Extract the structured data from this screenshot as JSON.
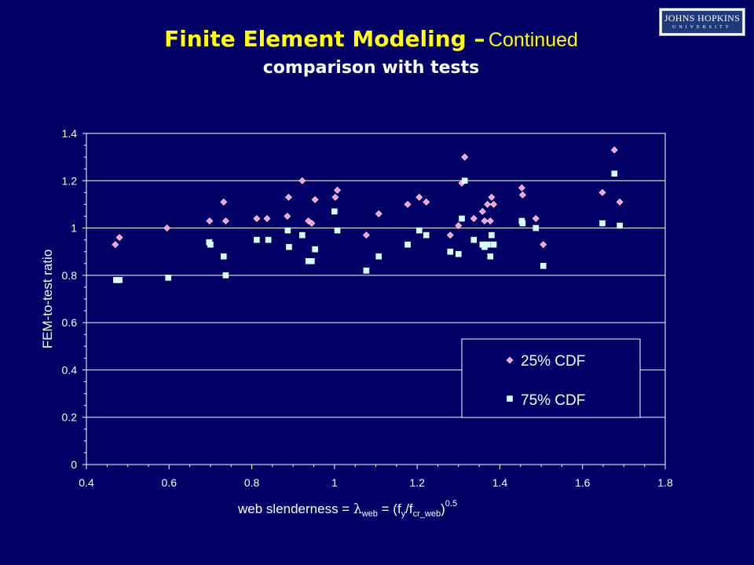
{
  "slide": {
    "title_main": "Finite Element Modeling –",
    "title_sub": "Continued",
    "subtitle": "comparison with tests",
    "logo_line1": "JOHNS HOPKINS",
    "logo_line2": "UNIVERSITY"
  },
  "colors": {
    "background": "#000066",
    "title": "#ffff00",
    "series_25": "#ff99cc",
    "series_75": "#ccffff"
  },
  "chart_data": {
    "type": "scatter",
    "ylabel": "FEM-to-test ratio",
    "xlabel": {
      "prefix": "web slenderness = ",
      "lambda": "λ",
      "lambda_sub": "web",
      "middle": " = (f",
      "fy_sub": "y",
      "slash": "/f",
      "fcr_sub": "cr_web",
      "close": ")",
      "exponent": "0.5"
    },
    "xlim": [
      0.4,
      1.8
    ],
    "ylim": [
      0,
      1.4
    ],
    "x_ticks": [
      "0.4",
      "0.6",
      "0.8",
      "1",
      "1.2",
      "1.4",
      "1.6",
      "1.8"
    ],
    "y_ticks": [
      "0",
      "0.2",
      "0.4",
      "0.6",
      "0.8",
      "1",
      "1.2",
      "1.4"
    ],
    "grid": "horizontal",
    "legend_position": "lower-right",
    "series": [
      {
        "name": "25% CDF",
        "marker": "diamond",
        "points": [
          [
            0.47,
            0.93
          ],
          [
            0.48,
            0.96
          ],
          [
            0.595,
            1.0
          ],
          [
            0.698,
            1.03
          ],
          [
            0.732,
            1.11
          ],
          [
            0.737,
            1.03
          ],
          [
            0.812,
            1.04
          ],
          [
            0.837,
            1.04
          ],
          [
            0.886,
            1.05
          ],
          [
            0.889,
            1.13
          ],
          [
            0.922,
            1.2
          ],
          [
            0.937,
            1.03
          ],
          [
            0.945,
            1.02
          ],
          [
            0.953,
            1.12
          ],
          [
            1.002,
            1.13
          ],
          [
            1.007,
            1.16
          ],
          [
            1.077,
            0.97
          ],
          [
            1.107,
            1.06
          ],
          [
            1.177,
            1.1
          ],
          [
            1.205,
            1.13
          ],
          [
            1.222,
            1.11
          ],
          [
            1.28,
            0.97
          ],
          [
            1.3,
            1.01
          ],
          [
            1.308,
            1.19
          ],
          [
            1.315,
            1.3
          ],
          [
            1.337,
            1.04
          ],
          [
            1.358,
            1.07
          ],
          [
            1.363,
            1.03
          ],
          [
            1.37,
            1.1
          ],
          [
            1.377,
            1.03
          ],
          [
            1.38,
            1.13
          ],
          [
            1.385,
            1.1
          ],
          [
            1.453,
            1.17
          ],
          [
            1.455,
            1.14
          ],
          [
            1.487,
            1.04
          ],
          [
            1.505,
            0.93
          ],
          [
            1.648,
            1.15
          ],
          [
            1.677,
            1.33
          ],
          [
            1.69,
            1.11
          ]
        ]
      },
      {
        "name": "75% CDF",
        "marker": "square",
        "points": [
          [
            0.472,
            0.78
          ],
          [
            0.48,
            0.78
          ],
          [
            0.598,
            0.79
          ],
          [
            0.697,
            0.94
          ],
          [
            0.7,
            0.93
          ],
          [
            0.732,
            0.88
          ],
          [
            0.737,
            0.8
          ],
          [
            0.812,
            0.95
          ],
          [
            0.84,
            0.95
          ],
          [
            0.887,
            0.99
          ],
          [
            0.89,
            0.92
          ],
          [
            0.922,
            0.97
          ],
          [
            0.937,
            0.86
          ],
          [
            0.945,
            0.86
          ],
          [
            0.953,
            0.91
          ],
          [
            1.0,
            1.07
          ],
          [
            1.007,
            0.99
          ],
          [
            1.077,
            0.82
          ],
          [
            1.107,
            0.88
          ],
          [
            1.177,
            0.93
          ],
          [
            1.205,
            0.99
          ],
          [
            1.222,
            0.97
          ],
          [
            1.28,
            0.9
          ],
          [
            1.3,
            0.89
          ],
          [
            1.308,
            1.04
          ],
          [
            1.315,
            1.2
          ],
          [
            1.337,
            0.95
          ],
          [
            1.358,
            0.93
          ],
          [
            1.363,
            0.92
          ],
          [
            1.37,
            0.93
          ],
          [
            1.377,
            0.88
          ],
          [
            1.38,
            0.97
          ],
          [
            1.385,
            0.93
          ],
          [
            1.453,
            1.03
          ],
          [
            1.455,
            1.02
          ],
          [
            1.487,
            1.0
          ],
          [
            1.505,
            0.84
          ],
          [
            1.648,
            1.02
          ],
          [
            1.677,
            1.23
          ],
          [
            1.69,
            1.01
          ]
        ]
      }
    ]
  }
}
